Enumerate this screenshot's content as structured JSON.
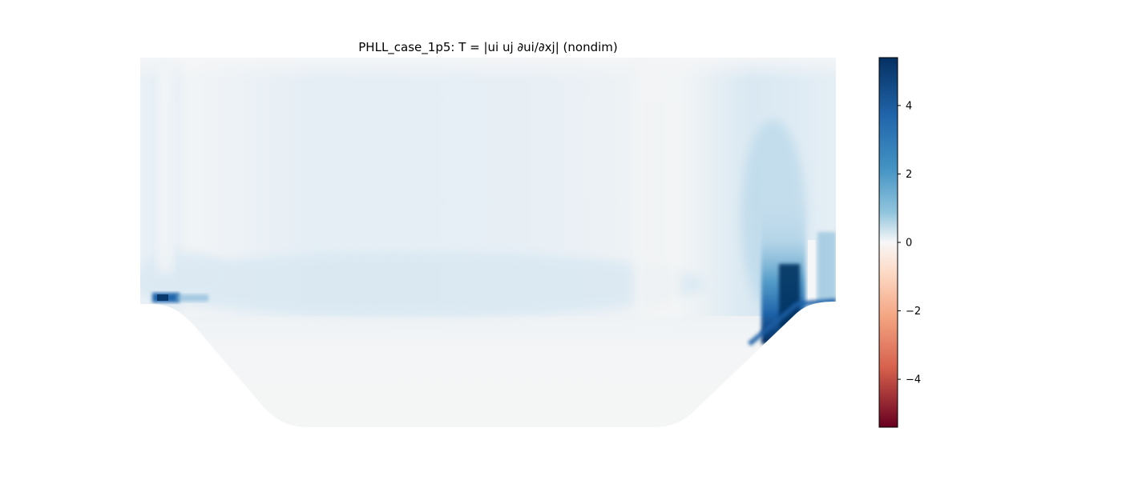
{
  "chart_data": {
    "type": "heatmap",
    "title": "PHLL_case_1p5: T = |ui uj ∂ui/∂xj| (nondim)",
    "xlabel": "",
    "ylabel": "",
    "axes_visible": false,
    "grid": false,
    "colormap": "RdBu",
    "colorbar": {
      "position": "right",
      "vmin": -5.4,
      "vmax": 5.4,
      "ticks": [
        4,
        2,
        0,
        -2,
        -4
      ],
      "tick_labels": [
        "4",
        "2",
        "0",
        "−2",
        "−4"
      ],
      "colors": {
        "min": "#67001f",
        "neg_mid": "#d6604d",
        "neg_light": "#fddbc7",
        "zero": "#f7f7f7",
        "pos_light": "#d1e5f0",
        "pos_mid": "#4393c3",
        "max": "#053061"
      }
    },
    "domain": "periodic hill channel",
    "field_summary": {
      "background_level": 0.5,
      "upper_channel_level": 0.8,
      "lower_region_level": 0.1,
      "hotspots": [
        {
          "location": "left hill crest",
          "level": 4.0
        },
        {
          "location": "right hill windward slope",
          "level": 5.4
        },
        {
          "location": "right hill upper column",
          "level": 2.0
        }
      ]
    }
  }
}
